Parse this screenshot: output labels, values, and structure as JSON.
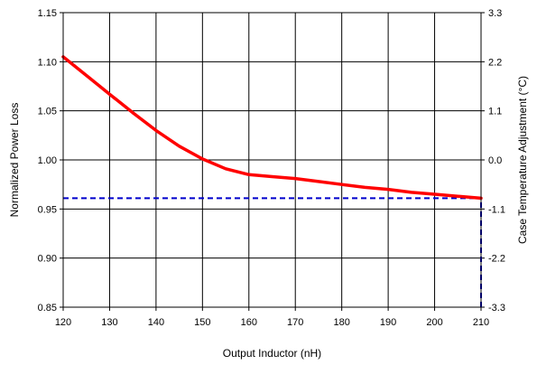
{
  "chart_data": {
    "type": "line",
    "title": "",
    "xlabel": "Output Inductor (nH)",
    "ylabel": "Normalized Power Loss",
    "y2label": "Case Temperature Adjustment (°C)",
    "xlim": [
      120,
      210
    ],
    "ylim": [
      0.85,
      1.15
    ],
    "y2lim": [
      -3.3,
      3.3
    ],
    "x_ticks": [
      "120",
      "130",
      "140",
      "150",
      "160",
      "170",
      "180",
      "190",
      "200",
      "210"
    ],
    "y_ticks": [
      "0.85",
      "0.90",
      "0.95",
      "1.00",
      "1.05",
      "1.10",
      "1.15"
    ],
    "y2_ticks": [
      "-3.3",
      "-2.2",
      "-1.1",
      "0.0",
      "1.1",
      "2.2",
      "3.3"
    ],
    "grid": true,
    "legend": "none",
    "series": [
      {
        "color": "#ff0000",
        "x": [
          120,
          125,
          130,
          135,
          140,
          145,
          150,
          155,
          160,
          165,
          170,
          175,
          180,
          185,
          190,
          195,
          200,
          205,
          210
        ],
        "y": [
          1.105,
          1.086,
          1.067,
          1.048,
          1.03,
          1.014,
          1.001,
          0.991,
          0.985,
          0.983,
          0.981,
          0.978,
          0.975,
          0.972,
          0.97,
          0.967,
          0.965,
          0.963,
          0.961
        ]
      }
    ],
    "reference_lines": [
      {
        "color": "#0000cc",
        "style": "dashed",
        "orientation": "horizontal",
        "y": 0.961,
        "x_from": 120,
        "x_to": 210
      },
      {
        "color": "#0000cc",
        "style": "dashed",
        "orientation": "vertical",
        "x": 210,
        "y_from": 0.85,
        "y_to": 0.961
      }
    ]
  }
}
